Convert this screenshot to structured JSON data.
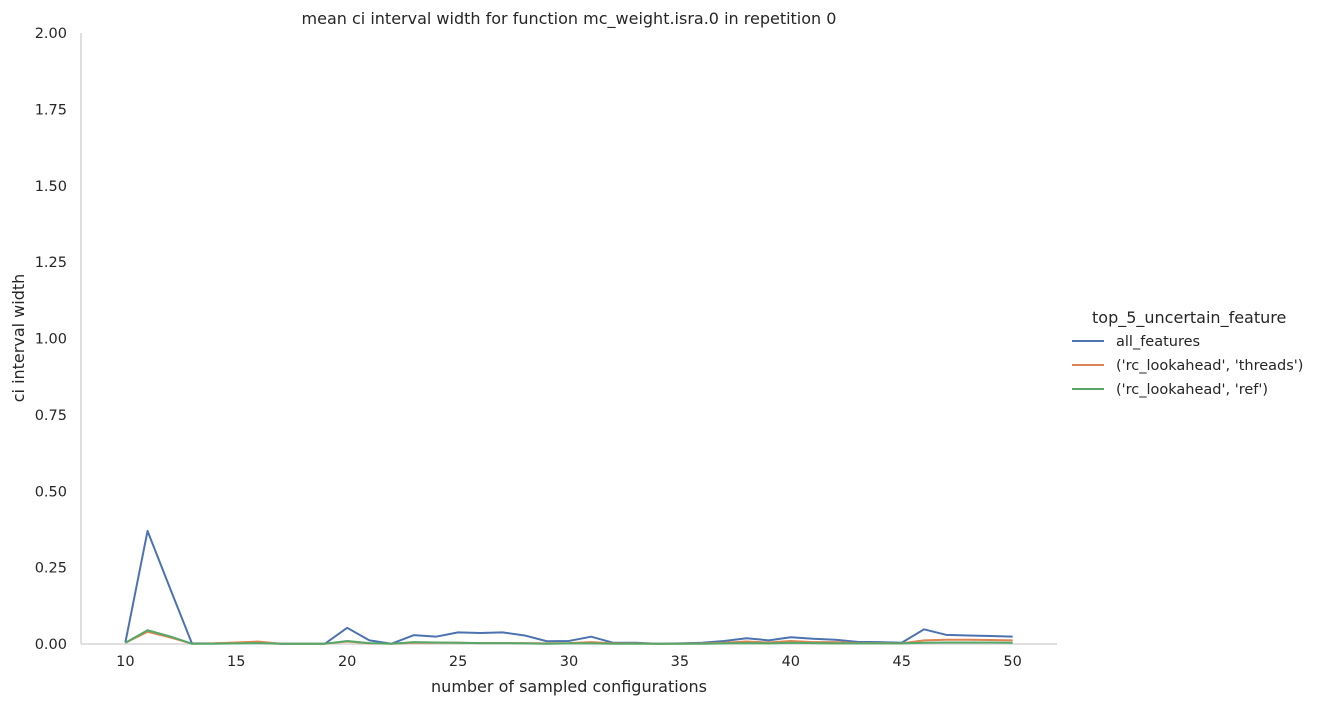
{
  "chart_data": {
    "type": "line",
    "title": "mean ci interval width for function mc_weight.isra.0 in repetition 0",
    "xlabel": "number of sampled configurations",
    "ylabel": "ci interval width",
    "xlim": [
      8,
      52
    ],
    "ylim": [
      0,
      2.0
    ],
    "xticks": [
      10,
      15,
      20,
      25,
      30,
      35,
      40,
      45,
      50
    ],
    "yticks": [
      0.0,
      0.25,
      0.5,
      0.75,
      1.0,
      1.25,
      1.5,
      1.75,
      2.0
    ],
    "grid": false,
    "legend": {
      "title": "top_5_uncertain_feature",
      "placement": "right"
    },
    "x": [
      10,
      11,
      12,
      13,
      14,
      15,
      16,
      17,
      18,
      19,
      20,
      21,
      22,
      23,
      24,
      25,
      26,
      27,
      28,
      29,
      30,
      31,
      32,
      33,
      34,
      35,
      36,
      37,
      38,
      39,
      40,
      41,
      42,
      43,
      44,
      45,
      46,
      47,
      48,
      49,
      50
    ],
    "series": [
      {
        "name": "all_features",
        "color": "#4c72b0",
        "values": [
          0.005,
          0.37,
          0.185,
          0.002,
          0.002,
          0.004,
          0.006,
          0.001,
          0.001,
          0.001,
          0.053,
          0.012,
          0.001,
          0.029,
          0.024,
          0.038,
          0.036,
          0.038,
          0.028,
          0.009,
          0.01,
          0.024,
          0.004,
          0.004,
          0.001,
          0.002,
          0.004,
          0.01,
          0.019,
          0.012,
          0.022,
          0.017,
          0.014,
          0.007,
          0.006,
          0.004,
          0.048,
          0.03,
          0.028,
          0.026,
          0.024
        ]
      },
      {
        "name": "('rc_lookahead', 'threads')",
        "color": "#dd8452",
        "values": [
          0.004,
          0.04,
          0.022,
          0.001,
          0.002,
          0.005,
          0.008,
          0.001,
          0.001,
          0.001,
          0.008,
          0.002,
          0.001,
          0.004,
          0.004,
          0.004,
          0.003,
          0.003,
          0.003,
          0.002,
          0.003,
          0.006,
          0.002,
          0.002,
          0.001,
          0.001,
          0.002,
          0.004,
          0.008,
          0.005,
          0.01,
          0.006,
          0.006,
          0.003,
          0.003,
          0.002,
          0.012,
          0.014,
          0.014,
          0.013,
          0.012
        ]
      },
      {
        "name": "('rc_lookahead', 'ref')",
        "color": "#55a868",
        "values": [
          0.004,
          0.045,
          0.025,
          0.001,
          0.001,
          0.002,
          0.003,
          0.001,
          0.001,
          0.001,
          0.01,
          0.003,
          0.001,
          0.006,
          0.005,
          0.004,
          0.003,
          0.003,
          0.002,
          0.001,
          0.002,
          0.002,
          0.001,
          0.001,
          0.001,
          0.001,
          0.001,
          0.002,
          0.003,
          0.002,
          0.004,
          0.003,
          0.002,
          0.002,
          0.002,
          0.002,
          0.004,
          0.005,
          0.005,
          0.005,
          0.004
        ]
      }
    ]
  }
}
